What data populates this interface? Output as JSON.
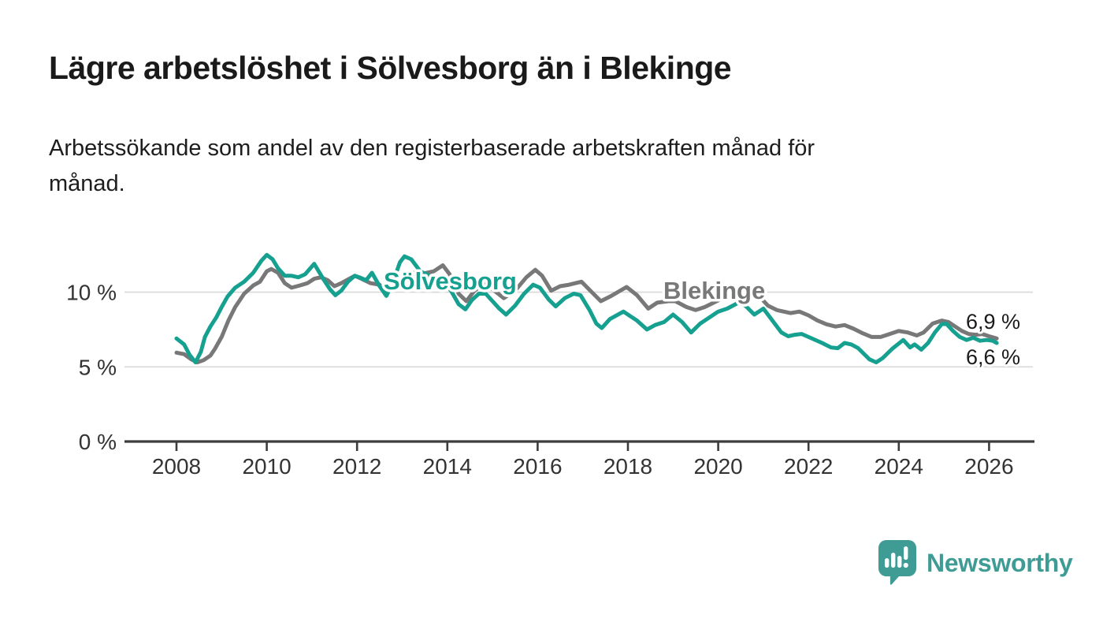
{
  "header": {
    "title": "Lägre arbetslöshet i Sölvesborg än i Blekinge",
    "subtitle_lines": [
      "Arbetssökande som andel av den registerbaserade arbetskraften månad för",
      "månad."
    ]
  },
  "chart_data": {
    "type": "line",
    "title": "Lägre arbetslöshet i Sölvesborg än i Blekinge",
    "subtitle": "Arbetssökande som andel av den registerbaserade arbetskraften månad för månad.",
    "xlabel": "",
    "ylabel": "",
    "x_range": [
      2007.9,
      2027.0
    ],
    "ylim": [
      0,
      13.5
    ],
    "grid": "horizontal",
    "legend_position": "inline-labels",
    "grid_values": [
      5,
      10
    ],
    "y_ticks": [
      {
        "value": 0,
        "label": "0 %"
      },
      {
        "value": 5,
        "label": "5 %"
      },
      {
        "value": 10,
        "label": "10 %"
      }
    ],
    "x_ticks": [
      {
        "value": 2008,
        "label": "2008"
      },
      {
        "value": 2010,
        "label": "2010"
      },
      {
        "value": 2012,
        "label": "2012"
      },
      {
        "value": 2014,
        "label": "2014"
      },
      {
        "value": 2016,
        "label": "2016"
      },
      {
        "value": 2018,
        "label": "2018"
      },
      {
        "value": 2020,
        "label": "2020"
      },
      {
        "value": 2022,
        "label": "2022"
      },
      {
        "value": 2024,
        "label": "2024"
      },
      {
        "value": 2026,
        "label": "2026"
      }
    ],
    "series": [
      {
        "name": "Sölvesborg",
        "color": "#16a08f",
        "end_label": "6,6 %",
        "end_value": 6.6,
        "points": [
          [
            2008.0,
            6.9
          ],
          [
            2008.17,
            6.5
          ],
          [
            2008.29,
            5.8
          ],
          [
            2008.42,
            5.3
          ],
          [
            2008.54,
            6.0
          ],
          [
            2008.63,
            7.0
          ],
          [
            2008.75,
            7.7
          ],
          [
            2008.88,
            8.3
          ],
          [
            2009.0,
            9.0
          ],
          [
            2009.13,
            9.7
          ],
          [
            2009.3,
            10.3
          ],
          [
            2009.5,
            10.7
          ],
          [
            2009.7,
            11.3
          ],
          [
            2009.88,
            12.1
          ],
          [
            2010.0,
            12.5
          ],
          [
            2010.13,
            12.2
          ],
          [
            2010.25,
            11.6
          ],
          [
            2010.4,
            11.1
          ],
          [
            2010.55,
            11.1
          ],
          [
            2010.7,
            11.0
          ],
          [
            2010.85,
            11.2
          ],
          [
            2011.05,
            11.9
          ],
          [
            2011.25,
            10.9
          ],
          [
            2011.4,
            10.2
          ],
          [
            2011.52,
            9.8
          ],
          [
            2011.65,
            10.1
          ],
          [
            2011.8,
            10.7
          ],
          [
            2011.95,
            11.1
          ],
          [
            2012.05,
            11.0
          ],
          [
            2012.2,
            10.8
          ],
          [
            2012.33,
            11.3
          ],
          [
            2012.5,
            10.4
          ],
          [
            2012.65,
            9.75
          ],
          [
            2012.8,
            10.7
          ],
          [
            2012.95,
            12.0
          ],
          [
            2013.05,
            12.4
          ],
          [
            2013.2,
            12.2
          ],
          [
            2013.4,
            11.4
          ],
          [
            2013.6,
            11.1
          ],
          [
            2013.8,
            11.0
          ],
          [
            2013.95,
            10.7
          ],
          [
            2014.1,
            10.0
          ],
          [
            2014.25,
            9.2
          ],
          [
            2014.4,
            8.85
          ],
          [
            2014.55,
            9.5
          ],
          [
            2014.7,
            9.9
          ],
          [
            2014.85,
            9.9
          ],
          [
            2015.0,
            9.4
          ],
          [
            2015.15,
            8.9
          ],
          [
            2015.3,
            8.5
          ],
          [
            2015.5,
            9.1
          ],
          [
            2015.7,
            9.9
          ],
          [
            2015.9,
            10.5
          ],
          [
            2016.05,
            10.3
          ],
          [
            2016.25,
            9.5
          ],
          [
            2016.4,
            9.05
          ],
          [
            2016.6,
            9.6
          ],
          [
            2016.8,
            9.9
          ],
          [
            2016.95,
            9.8
          ],
          [
            2017.15,
            8.8
          ],
          [
            2017.3,
            7.9
          ],
          [
            2017.42,
            7.6
          ],
          [
            2017.6,
            8.2
          ],
          [
            2017.9,
            8.7
          ],
          [
            2018.05,
            8.4
          ],
          [
            2018.2,
            8.1
          ],
          [
            2018.42,
            7.5
          ],
          [
            2018.6,
            7.8
          ],
          [
            2018.8,
            8.0
          ],
          [
            2019.0,
            8.5
          ],
          [
            2019.2,
            8.0
          ],
          [
            2019.4,
            7.3
          ],
          [
            2019.6,
            7.9
          ],
          [
            2019.85,
            8.4
          ],
          [
            2020.0,
            8.7
          ],
          [
            2020.2,
            8.9
          ],
          [
            2020.45,
            9.3
          ],
          [
            2020.6,
            9.1
          ],
          [
            2020.8,
            8.5
          ],
          [
            2021.0,
            8.9
          ],
          [
            2021.15,
            8.3
          ],
          [
            2021.4,
            7.3
          ],
          [
            2021.55,
            7.05
          ],
          [
            2021.7,
            7.15
          ],
          [
            2021.85,
            7.2
          ],
          [
            2022.0,
            7.0
          ],
          [
            2022.3,
            6.6
          ],
          [
            2022.5,
            6.3
          ],
          [
            2022.65,
            6.25
          ],
          [
            2022.8,
            6.6
          ],
          [
            2022.95,
            6.5
          ],
          [
            2023.1,
            6.25
          ],
          [
            2023.35,
            5.5
          ],
          [
            2023.5,
            5.3
          ],
          [
            2023.65,
            5.6
          ],
          [
            2023.85,
            6.2
          ],
          [
            2024.1,
            6.8
          ],
          [
            2024.25,
            6.3
          ],
          [
            2024.35,
            6.5
          ],
          [
            2024.5,
            6.15
          ],
          [
            2024.65,
            6.6
          ],
          [
            2024.8,
            7.3
          ],
          [
            2024.95,
            7.85
          ],
          [
            2025.05,
            7.9
          ],
          [
            2025.2,
            7.4
          ],
          [
            2025.35,
            7.0
          ],
          [
            2025.5,
            6.8
          ],
          [
            2025.65,
            6.95
          ],
          [
            2025.8,
            6.75
          ],
          [
            2025.95,
            6.8
          ],
          [
            2026.08,
            6.75
          ],
          [
            2026.17,
            6.6
          ]
        ]
      },
      {
        "name": "Blekinge",
        "color": "#787878",
        "end_label": "6,9 %",
        "end_value": 6.9,
        "points": [
          [
            2008.0,
            5.95
          ],
          [
            2008.17,
            5.85
          ],
          [
            2008.33,
            5.5
          ],
          [
            2008.46,
            5.3
          ],
          [
            2008.6,
            5.45
          ],
          [
            2008.75,
            5.75
          ],
          [
            2008.85,
            6.2
          ],
          [
            2009.0,
            7.0
          ],
          [
            2009.15,
            8.1
          ],
          [
            2009.3,
            9.0
          ],
          [
            2009.5,
            9.9
          ],
          [
            2009.7,
            10.45
          ],
          [
            2009.85,
            10.7
          ],
          [
            2010.0,
            11.4
          ],
          [
            2010.1,
            11.55
          ],
          [
            2010.25,
            11.3
          ],
          [
            2010.4,
            10.6
          ],
          [
            2010.55,
            10.3
          ],
          [
            2010.73,
            10.45
          ],
          [
            2010.9,
            10.6
          ],
          [
            2011.05,
            10.9
          ],
          [
            2011.2,
            11.0
          ],
          [
            2011.35,
            10.8
          ],
          [
            2011.5,
            10.4
          ],
          [
            2011.65,
            10.6
          ],
          [
            2011.8,
            10.85
          ],
          [
            2011.95,
            11.1
          ],
          [
            2012.1,
            10.9
          ],
          [
            2012.3,
            10.6
          ],
          [
            2012.5,
            10.5
          ],
          [
            2012.65,
            10.05
          ],
          [
            2012.8,
            10.4
          ],
          [
            2012.95,
            10.8
          ],
          [
            2013.1,
            11.1
          ],
          [
            2013.25,
            11.3
          ],
          [
            2013.4,
            11.2
          ],
          [
            2013.55,
            11.3
          ],
          [
            2013.7,
            11.4
          ],
          [
            2013.9,
            11.8
          ],
          [
            2014.05,
            11.2
          ],
          [
            2014.25,
            9.9
          ],
          [
            2014.42,
            9.4
          ],
          [
            2014.6,
            10.1
          ],
          [
            2014.8,
            10.55
          ],
          [
            2015.0,
            10.2
          ],
          [
            2015.25,
            9.6
          ],
          [
            2015.5,
            10.1
          ],
          [
            2015.75,
            11.0
          ],
          [
            2015.95,
            11.5
          ],
          [
            2016.1,
            11.1
          ],
          [
            2016.3,
            10.1
          ],
          [
            2016.5,
            10.4
          ],
          [
            2016.7,
            10.5
          ],
          [
            2016.97,
            10.7
          ],
          [
            2017.2,
            10.0
          ],
          [
            2017.4,
            9.4
          ],
          [
            2017.6,
            9.7
          ],
          [
            2017.97,
            10.35
          ],
          [
            2018.2,
            9.8
          ],
          [
            2018.45,
            8.9
          ],
          [
            2018.65,
            9.3
          ],
          [
            2018.9,
            9.4
          ],
          [
            2019.05,
            9.4
          ],
          [
            2019.3,
            9.0
          ],
          [
            2019.5,
            8.8
          ],
          [
            2019.7,
            9.0
          ],
          [
            2019.9,
            9.3
          ],
          [
            2020.1,
            9.6
          ],
          [
            2020.35,
            9.9
          ],
          [
            2020.55,
            10.1
          ],
          [
            2020.75,
            9.9
          ],
          [
            2020.95,
            9.6
          ],
          [
            2021.1,
            9.1
          ],
          [
            2021.3,
            8.8
          ],
          [
            2021.6,
            8.6
          ],
          [
            2021.8,
            8.7
          ],
          [
            2022.0,
            8.45
          ],
          [
            2022.2,
            8.1
          ],
          [
            2022.4,
            7.85
          ],
          [
            2022.6,
            7.7
          ],
          [
            2022.8,
            7.8
          ],
          [
            2023.0,
            7.55
          ],
          [
            2023.2,
            7.25
          ],
          [
            2023.4,
            7.0
          ],
          [
            2023.6,
            7.0
          ],
          [
            2023.8,
            7.2
          ],
          [
            2024.0,
            7.4
          ],
          [
            2024.2,
            7.3
          ],
          [
            2024.4,
            7.1
          ],
          [
            2024.55,
            7.3
          ],
          [
            2024.75,
            7.9
          ],
          [
            2024.95,
            8.1
          ],
          [
            2025.1,
            8.0
          ],
          [
            2025.25,
            7.7
          ],
          [
            2025.4,
            7.4
          ],
          [
            2025.55,
            7.2
          ],
          [
            2025.7,
            7.15
          ],
          [
            2025.85,
            7.2
          ],
          [
            2026.0,
            7.05
          ],
          [
            2026.17,
            6.9
          ]
        ]
      }
    ]
  },
  "footer": {
    "brand": "Newsworthy",
    "brand_color": "#3f9c95"
  },
  "colors": {
    "solvesborg_teal": "#16a08f",
    "blekinge_gray": "#787878",
    "gridline": "#d8d8d8",
    "axis": "#3c3c3c",
    "axis_text": "#333333",
    "text": "#1a1a1a"
  }
}
